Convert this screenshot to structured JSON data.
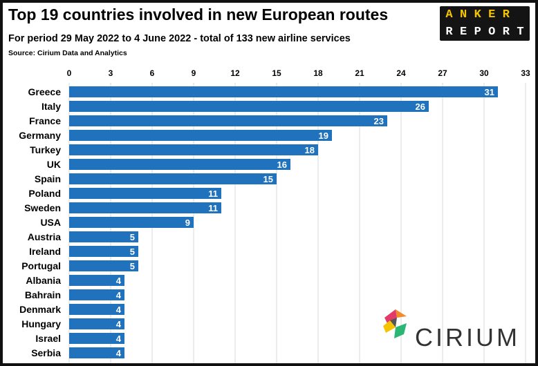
{
  "header": {
    "title": "Top 19 countries involved in new European routes",
    "subtitle": "For period 29 May 2022 to 4 June 2022 - total of 133 new airline services",
    "source": "Source: Cirium Data and Analytics"
  },
  "logos": {
    "anker_top": [
      "A",
      "N",
      "K",
      "E",
      "R"
    ],
    "anker_bottom": [
      "R",
      "E",
      "P",
      "O",
      "R",
      "T"
    ],
    "cirium": "CIRIUM"
  },
  "colors": {
    "bar": "#1f72bb",
    "grid": "#d9d9d9",
    "anker_yellow": "#f5c400"
  },
  "chart_data": {
    "type": "bar",
    "orientation": "horizontal",
    "categories": [
      "Greece",
      "Italy",
      "France",
      "Germany",
      "Turkey",
      "UK",
      "Spain",
      "Poland",
      "Sweden",
      "USA",
      "Austria",
      "Ireland",
      "Portugal",
      "Albania",
      "Bahrain",
      "Denmark",
      "Hungary",
      "Israel",
      "Serbia"
    ],
    "values": [
      31,
      26,
      23,
      19,
      18,
      16,
      15,
      11,
      11,
      9,
      5,
      5,
      5,
      4,
      4,
      4,
      4,
      4,
      4
    ],
    "xlim": [
      0,
      33
    ],
    "xticks": [
      0,
      3,
      6,
      9,
      12,
      15,
      18,
      21,
      24,
      27,
      30,
      33
    ],
    "grid": true,
    "axis_position": "top",
    "data_labels": true
  }
}
